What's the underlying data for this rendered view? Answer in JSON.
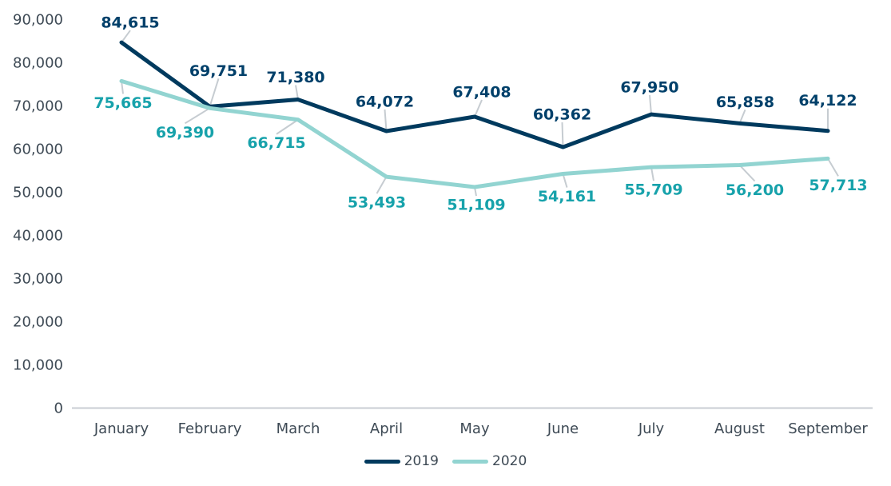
{
  "chart_data": {
    "type": "line",
    "title": "",
    "categories": [
      "January",
      "February",
      "March",
      "April",
      "May",
      "June",
      "July",
      "August",
      "September"
    ],
    "y_axis": {
      "ticks": [
        0,
        10000,
        20000,
        30000,
        40000,
        50000,
        60000,
        70000,
        80000,
        90000
      ],
      "tick_labels": [
        "0",
        "10,000",
        "20,000",
        "30,000",
        "40,000",
        "50,000",
        "60,000",
        "70,000",
        "80,000",
        "90,000"
      ]
    },
    "ylim": [
      0,
      90000
    ],
    "grid": false,
    "legend_position": "bottom",
    "colors": {
      "background": "#ffffff",
      "axis_text": "#3e4a55",
      "axis_line": "#c9ced3",
      "leader_line": "#c6ccd1",
      "legend_text": "#3e4a55"
    },
    "series": [
      {
        "name": "2019",
        "color": "#003a5e",
        "label_color": "#00406a",
        "label_side": "above",
        "values": [
          84615,
          69751,
          71380,
          64072,
          67408,
          60362,
          67950,
          65858,
          64122
        ],
        "value_labels": [
          "84,615",
          "69,751",
          "71,380",
          "64,072",
          "67,408",
          "60,362",
          "67,950",
          "65,858",
          "64,122"
        ],
        "label_offsets": [
          [
            11,
            -25
          ],
          [
            11,
            -45
          ],
          [
            -3,
            -28
          ],
          [
            -2,
            -37
          ],
          [
            9,
            -31
          ],
          [
            -1,
            -41
          ],
          [
            -2,
            -34
          ],
          [
            7,
            -27
          ],
          [
            0,
            -38
          ]
        ]
      },
      {
        "name": "2020",
        "color": "#92d4d1",
        "label_color": "#17a2ab",
        "label_side": "below",
        "values": [
          75665,
          69390,
          66715,
          53493,
          51109,
          54161,
          55709,
          56200,
          57713
        ],
        "value_labels": [
          "75,665",
          "69,390",
          "66,715",
          "53,493",
          "51,109",
          "54,161",
          "55,709",
          "56,200",
          "57,713"
        ],
        "label_offsets": [
          [
            2,
            27
          ],
          [
            -31,
            30
          ],
          [
            -27,
            29
          ],
          [
            -12,
            32
          ],
          [
            2,
            22
          ],
          [
            5,
            28
          ],
          [
            3,
            28
          ],
          [
            19,
            31
          ],
          [
            13,
            33
          ]
        ]
      }
    ]
  }
}
